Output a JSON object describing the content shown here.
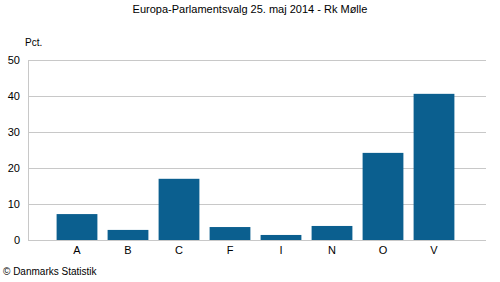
{
  "chart_data": {
    "type": "bar",
    "title": "Europa-Parlamentsvalg 25. maj 2014 - Rk Mølle",
    "y_label": "Pct.",
    "annotations": [
      "© Danmarks Statistik"
    ],
    "categories": [
      "A",
      "B",
      "C",
      "F",
      "I",
      "N",
      "O",
      "V"
    ],
    "values": [
      7.2,
      2.8,
      17.0,
      3.6,
      1.4,
      3.9,
      24.2,
      40.6
    ],
    "color": "#0b5f8f",
    "ylim": [
      0,
      50
    ],
    "yticks": [
      0,
      10,
      20,
      30,
      40,
      50
    ],
    "grid": true
  }
}
